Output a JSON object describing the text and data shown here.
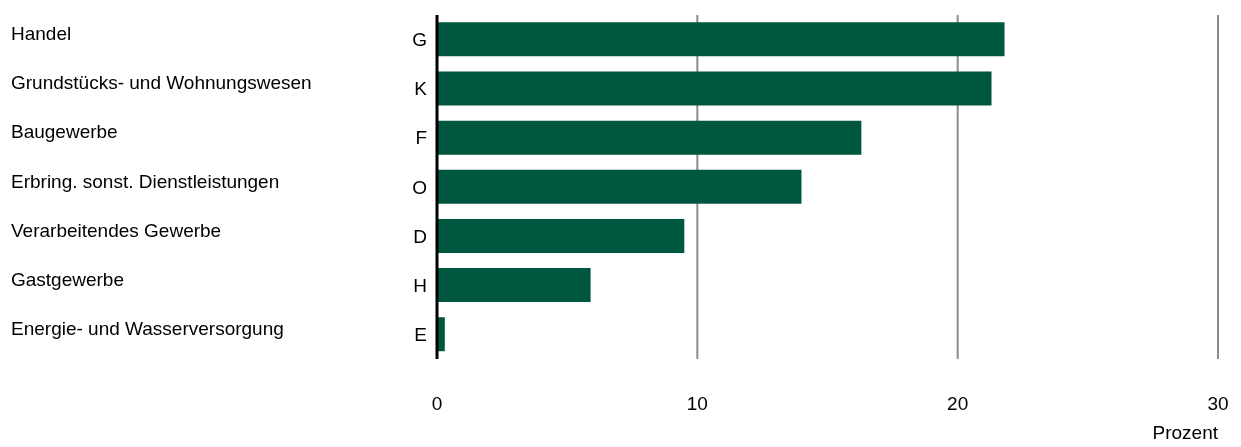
{
  "chart_data": {
    "type": "bar",
    "orientation": "horizontal",
    "xlabel": "Prozent",
    "categories": [
      "Handel",
      "Grundstücks- und Wohnungswesen",
      "Baugewerbe",
      "Erbring. sonst. Dienstleistungen",
      "Verarbeitendes Gewerbe",
      "Gastgewerbe",
      "Energie- und Wasserversorgung"
    ],
    "values": [
      21.8,
      21.3,
      16.3,
      14.0,
      9.5,
      5.9,
      0.3
    ],
    "color": "#00573f",
    "xlim": [
      0,
      30
    ],
    "xticks": [
      0,
      10,
      20,
      30
    ],
    "grid": "x",
    "annotations": [
      "G",
      "K",
      "F",
      "O",
      "D",
      "H",
      "E"
    ]
  }
}
